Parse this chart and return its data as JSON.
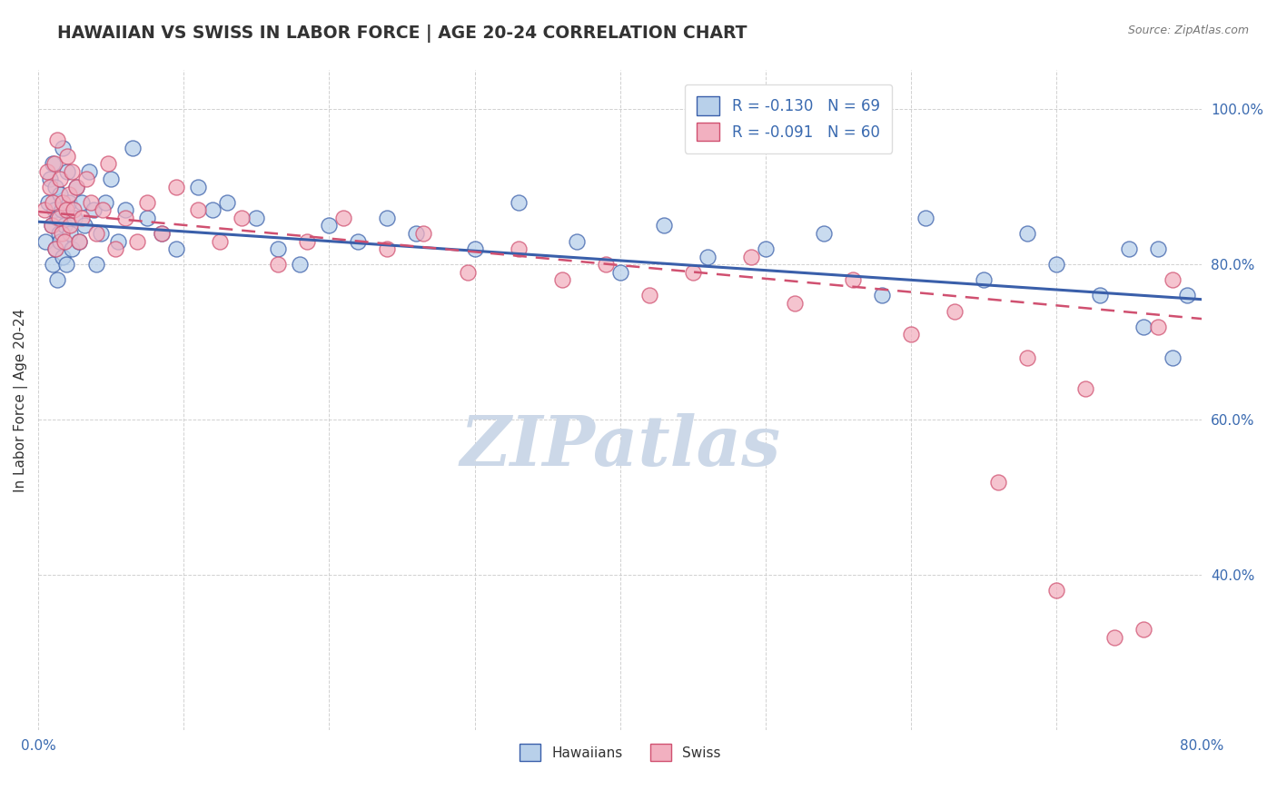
{
  "title": "HAWAIIAN VS SWISS IN LABOR FORCE | AGE 20-24 CORRELATION CHART",
  "source_text": "Source: ZipAtlas.com",
  "ylabel": "In Labor Force | Age 20-24",
  "xlim": [
    0.0,
    0.8
  ],
  "ylim": [
    0.2,
    1.05
  ],
  "xticks": [
    0.0,
    0.1,
    0.2,
    0.3,
    0.4,
    0.5,
    0.6,
    0.7,
    0.8
  ],
  "xticklabels": [
    "0.0%",
    "",
    "",
    "",
    "",
    "",
    "",
    "",
    "80.0%"
  ],
  "ytick_positions": [
    0.4,
    0.6,
    0.8,
    1.0
  ],
  "ytick_labels": [
    "40.0%",
    "60.0%",
    "80.0%",
    "100.0%"
  ],
  "hawaiian_R": -0.13,
  "hawaiian_N": 69,
  "swiss_R": -0.091,
  "swiss_N": 60,
  "hawaiian_color": "#b8d0ea",
  "swiss_color": "#f2b0c0",
  "hawaiian_line_color": "#3a5faa",
  "swiss_line_color": "#d05070",
  "background_color": "#ffffff",
  "grid_color": "#cccccc",
  "watermark": "ZIPatlas",
  "watermark_color": "#ccd8e8",
  "hawaiian_trendline": [
    0.855,
    0.755
  ],
  "swiss_trendline": [
    0.868,
    0.73
  ],
  "hawaiians_x": [
    0.005,
    0.007,
    0.008,
    0.009,
    0.01,
    0.01,
    0.011,
    0.012,
    0.012,
    0.013,
    0.013,
    0.014,
    0.015,
    0.015,
    0.016,
    0.017,
    0.017,
    0.018,
    0.019,
    0.02,
    0.021,
    0.022,
    0.023,
    0.025,
    0.026,
    0.028,
    0.03,
    0.032,
    0.035,
    0.038,
    0.04,
    0.043,
    0.046,
    0.05,
    0.055,
    0.06,
    0.065,
    0.075,
    0.085,
    0.095,
    0.11,
    0.12,
    0.13,
    0.15,
    0.165,
    0.18,
    0.2,
    0.22,
    0.24,
    0.26,
    0.3,
    0.33,
    0.37,
    0.4,
    0.43,
    0.46,
    0.5,
    0.54,
    0.58,
    0.61,
    0.65,
    0.68,
    0.7,
    0.73,
    0.75,
    0.76,
    0.77,
    0.78,
    0.79
  ],
  "hawaiians_y": [
    0.83,
    0.88,
    0.91,
    0.85,
    0.8,
    0.93,
    0.87,
    0.82,
    0.9,
    0.86,
    0.78,
    0.84,
    0.89,
    0.83,
    0.87,
    0.81,
    0.95,
    0.85,
    0.8,
    0.92,
    0.88,
    0.84,
    0.82,
    0.86,
    0.9,
    0.83,
    0.88,
    0.85,
    0.92,
    0.87,
    0.8,
    0.84,
    0.88,
    0.91,
    0.83,
    0.87,
    0.95,
    0.86,
    0.84,
    0.82,
    0.9,
    0.87,
    0.88,
    0.86,
    0.82,
    0.8,
    0.85,
    0.83,
    0.86,
    0.84,
    0.82,
    0.88,
    0.83,
    0.79,
    0.85,
    0.81,
    0.82,
    0.84,
    0.76,
    0.86,
    0.78,
    0.84,
    0.8,
    0.76,
    0.82,
    0.72,
    0.82,
    0.68,
    0.76
  ],
  "swiss_x": [
    0.004,
    0.006,
    0.008,
    0.009,
    0.01,
    0.011,
    0.012,
    0.013,
    0.014,
    0.015,
    0.016,
    0.017,
    0.018,
    0.019,
    0.02,
    0.021,
    0.022,
    0.023,
    0.024,
    0.026,
    0.028,
    0.03,
    0.033,
    0.036,
    0.04,
    0.044,
    0.048,
    0.053,
    0.06,
    0.068,
    0.075,
    0.085,
    0.095,
    0.11,
    0.125,
    0.14,
    0.165,
    0.185,
    0.21,
    0.24,
    0.265,
    0.295,
    0.33,
    0.36,
    0.39,
    0.42,
    0.45,
    0.49,
    0.52,
    0.56,
    0.6,
    0.63,
    0.66,
    0.68,
    0.7,
    0.72,
    0.74,
    0.76,
    0.77,
    0.78
  ],
  "swiss_y": [
    0.87,
    0.92,
    0.9,
    0.85,
    0.88,
    0.93,
    0.82,
    0.96,
    0.86,
    0.91,
    0.84,
    0.88,
    0.83,
    0.87,
    0.94,
    0.89,
    0.85,
    0.92,
    0.87,
    0.9,
    0.83,
    0.86,
    0.91,
    0.88,
    0.84,
    0.87,
    0.93,
    0.82,
    0.86,
    0.83,
    0.88,
    0.84,
    0.9,
    0.87,
    0.83,
    0.86,
    0.8,
    0.83,
    0.86,
    0.82,
    0.84,
    0.79,
    0.82,
    0.78,
    0.8,
    0.76,
    0.79,
    0.81,
    0.75,
    0.78,
    0.71,
    0.74,
    0.52,
    0.68,
    0.38,
    0.64,
    0.32,
    0.33,
    0.72,
    0.78
  ]
}
